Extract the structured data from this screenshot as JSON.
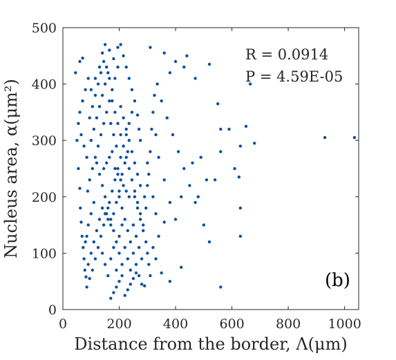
{
  "chart_data": {
    "type": "scatter",
    "xlabel": "Distance from the border, Λ(μm)",
    "ylabel": "Nucleus area, α(μm²)",
    "xlim": [
      0,
      1050
    ],
    "ylim": [
      0,
      500
    ],
    "xticks": [
      "0",
      "200",
      "400",
      "600",
      "800",
      "1000"
    ],
    "yticks": [
      "0",
      "100",
      "200",
      "300",
      "400",
      "500"
    ],
    "xtick_values": [
      0,
      200,
      400,
      600,
      800,
      1000
    ],
    "ytick_values": [
      0,
      100,
      200,
      300,
      400,
      500
    ],
    "grid": false,
    "marker_color": "#0b4f9c",
    "annotations": {
      "r": "R = 0.0914",
      "p": "P = 4.59E-05",
      "panel": "(b)"
    },
    "series": [
      {
        "points": [
          [
            45,
            420
          ],
          [
            60,
            440
          ],
          [
            70,
            446
          ],
          [
            100,
            390
          ],
          [
            115,
            410
          ],
          [
            130,
            430
          ],
          [
            140,
            455
          ],
          [
            150,
            470
          ],
          [
            165,
            460
          ],
          [
            180,
            445
          ],
          [
            195,
            465
          ],
          [
            205,
            470
          ],
          [
            215,
            450
          ],
          [
            225,
            430
          ],
          [
            235,
            410
          ],
          [
            245,
            390
          ],
          [
            255,
            370
          ],
          [
            265,
            345
          ],
          [
            270,
            320
          ],
          [
            275,
            300
          ],
          [
            50,
            300
          ],
          [
            55,
            250
          ],
          [
            60,
            215
          ],
          [
            62,
            180
          ],
          [
            65,
            155
          ],
          [
            68,
            130
          ],
          [
            72,
            110
          ],
          [
            75,
            90
          ],
          [
            78,
            70
          ],
          [
            82,
            58
          ],
          [
            85,
            40
          ],
          [
            95,
            55
          ],
          [
            105,
            70
          ],
          [
            115,
            90
          ],
          [
            125,
            110
          ],
          [
            135,
            130
          ],
          [
            145,
            150
          ],
          [
            155,
            170
          ],
          [
            165,
            190
          ],
          [
            175,
            210
          ],
          [
            185,
            230
          ],
          [
            195,
            250
          ],
          [
            205,
            270
          ],
          [
            215,
            290
          ],
          [
            225,
            310
          ],
          [
            235,
            330
          ],
          [
            245,
            350
          ],
          [
            255,
            260
          ],
          [
            265,
            240
          ],
          [
            275,
            220
          ],
          [
            100,
            300
          ],
          [
            110,
            320
          ],
          [
            120,
            340
          ],
          [
            130,
            360
          ],
          [
            140,
            380
          ],
          [
            150,
            400
          ],
          [
            160,
            420
          ],
          [
            170,
            330
          ],
          [
            180,
            310
          ],
          [
            190,
            290
          ],
          [
            200,
            200
          ],
          [
            210,
            180
          ],
          [
            220,
            160
          ],
          [
            230,
            140
          ],
          [
            240,
            120
          ],
          [
            250,
            100
          ],
          [
            260,
            80
          ],
          [
            270,
            60
          ],
          [
            280,
            45
          ],
          [
            290,
            42
          ],
          [
            170,
            20
          ],
          [
            180,
            30
          ],
          [
            190,
            40
          ],
          [
            200,
            50
          ],
          [
            210,
            60
          ],
          [
            220,
            25
          ],
          [
            230,
            35
          ],
          [
            240,
            45
          ],
          [
            250,
            55
          ],
          [
            260,
            65
          ],
          [
            120,
            260
          ],
          [
            130,
            240
          ],
          [
            140,
            220
          ],
          [
            150,
            200
          ],
          [
            160,
            180
          ],
          [
            170,
            160
          ],
          [
            180,
            140
          ],
          [
            190,
            120
          ],
          [
            200,
            100
          ],
          [
            210,
            80
          ],
          [
            110,
            190
          ],
          [
            100,
            170
          ],
          [
            90,
            150
          ],
          [
            85,
            130
          ],
          [
            80,
            120
          ],
          [
            88,
            210
          ],
          [
            95,
            230
          ],
          [
            105,
            250
          ],
          [
            115,
            270
          ],
          [
            125,
            290
          ],
          [
            135,
            310
          ],
          [
            145,
            330
          ],
          [
            155,
            350
          ],
          [
            165,
            370
          ],
          [
            175,
            390
          ],
          [
            185,
            410
          ],
          [
            195,
            430
          ],
          [
            205,
            360
          ],
          [
            215,
            340
          ],
          [
            225,
            320
          ],
          [
            235,
            300
          ],
          [
            245,
            280
          ],
          [
            255,
            200
          ],
          [
            265,
            180
          ],
          [
            275,
            160
          ],
          [
            285,
            140
          ],
          [
            295,
            120
          ],
          [
            300,
            100
          ],
          [
            305,
            80
          ],
          [
            310,
            60
          ],
          [
            145,
            250
          ],
          [
            155,
            260
          ],
          [
            165,
            270
          ],
          [
            175,
            280
          ],
          [
            185,
            250
          ],
          [
            195,
            240
          ],
          [
            205,
            230
          ],
          [
            215,
            220
          ],
          [
            225,
            210
          ],
          [
            235,
            200
          ],
          [
            140,
            180
          ],
          [
            150,
            170
          ],
          [
            160,
            160
          ],
          [
            170,
            150
          ],
          [
            180,
            170
          ],
          [
            190,
            190
          ],
          [
            200,
            210
          ],
          [
            210,
            240
          ],
          [
            220,
            260
          ],
          [
            230,
            280
          ],
          [
            310,
            465
          ],
          [
            360,
            455
          ],
          [
            380,
            420
          ],
          [
            400,
            440
          ],
          [
            430,
            430
          ],
          [
            440,
            450
          ],
          [
            470,
            410
          ],
          [
            520,
            435
          ],
          [
            550,
            365
          ],
          [
            560,
            320
          ],
          [
            590,
            320
          ],
          [
            650,
            325
          ],
          [
            665,
            400
          ],
          [
            680,
            295
          ],
          [
            930,
            305
          ],
          [
            1035,
            305
          ],
          [
            560,
            40
          ],
          [
            510,
            230
          ],
          [
            480,
            200
          ],
          [
            460,
            260
          ],
          [
            420,
            200
          ],
          [
            400,
            160
          ],
          [
            380,
            190
          ],
          [
            360,
            230
          ],
          [
            340,
            270
          ],
          [
            330,
            310
          ],
          [
            320,
            350
          ],
          [
            350,
            370
          ],
          [
            370,
            340
          ],
          [
            390,
            310
          ],
          [
            410,
            280
          ],
          [
            430,
            250
          ],
          [
            450,
            220
          ],
          [
            470,
            190
          ],
          [
            490,
            270
          ],
          [
            500,
            150
          ],
          [
            520,
            120
          ],
          [
            540,
            230
          ],
          [
            560,
            280
          ],
          [
            610,
            250
          ],
          [
            630,
            290
          ],
          [
            630,
            180
          ],
          [
            630,
            130
          ],
          [
            625,
            235
          ],
          [
            420,
            75
          ],
          [
            380,
            50
          ],
          [
            350,
            65
          ],
          [
            330,
            90
          ],
          [
            320,
            110
          ],
          [
            340,
            130
          ],
          [
            360,
            155
          ],
          [
            300,
            260
          ],
          [
            310,
            280
          ],
          [
            320,
            200
          ],
          [
            330,
            170
          ],
          [
            300,
            220
          ],
          [
            305,
            240
          ],
          [
            315,
            320
          ],
          [
            325,
            380
          ],
          [
            335,
            400
          ],
          [
            60,
            350
          ],
          [
            70,
            370
          ],
          [
            80,
            390
          ],
          [
            90,
            410
          ],
          [
            55,
            330
          ],
          [
            65,
            310
          ],
          [
            75,
            290
          ],
          [
            85,
            270
          ],
          [
            95,
            340
          ],
          [
            105,
            360
          ],
          [
            115,
            380
          ],
          [
            125,
            400
          ],
          [
            135,
            420
          ],
          [
            145,
            440
          ],
          [
            155,
            430
          ],
          [
            165,
            410
          ],
          [
            175,
            370
          ],
          [
            185,
            350
          ],
          [
            195,
            330
          ],
          [
            205,
            310
          ],
          [
            215,
            290
          ],
          [
            225,
            270
          ],
          [
            235,
            250
          ],
          [
            245,
            230
          ],
          [
            255,
            210
          ],
          [
            265,
            190
          ],
          [
            275,
            170
          ],
          [
            285,
            150
          ],
          [
            90,
            80
          ],
          [
            100,
            100
          ],
          [
            110,
            120
          ],
          [
            120,
            140
          ],
          [
            130,
            160
          ],
          [
            140,
            100
          ],
          [
            150,
            80
          ],
          [
            160,
            60
          ],
          [
            170,
            90
          ],
          [
            180,
            110
          ],
          [
            190,
            70
          ],
          [
            200,
            130
          ],
          [
            210,
            150
          ],
          [
            220,
            110
          ],
          [
            230,
            90
          ],
          [
            240,
            70
          ],
          [
            250,
            150
          ],
          [
            260,
            130
          ],
          [
            270,
            110
          ],
          [
            280,
            90
          ],
          [
            290,
            200
          ],
          [
            295,
            180
          ]
        ]
      }
    ]
  }
}
